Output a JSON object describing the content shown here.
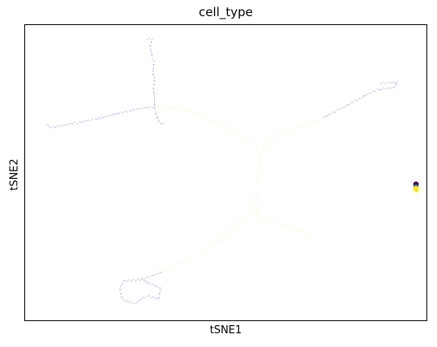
{
  "chart_data": {
    "type": "scatter",
    "title": "cell_type",
    "xlabel": "tSNE1",
    "ylabel": "tSNE2",
    "xlim": [
      0,
      100
    ],
    "ylim": [
      0,
      100
    ],
    "grid": false,
    "legend": "none",
    "ticks": "hidden",
    "point_colors": {
      "branch_faint": "#8f9bd6",
      "trunk_faint": "#f3f5b8",
      "cluster_purple": "#440154",
      "cluster_blue": "#31688e",
      "cluster_yellow": "#fde725"
    },
    "paths": [
      {
        "tone": "branch",
        "points": [
          [
            30.5,
            95.2
          ],
          [
            31.6,
            94.8
          ],
          [
            31.0,
            92.5
          ],
          [
            32.0,
            88.0
          ],
          [
            32.2,
            82.0
          ],
          [
            32.3,
            76.0
          ],
          [
            32.6,
            70.0
          ],
          [
            33.7,
            67.2
          ],
          [
            35.0,
            65.8
          ]
        ]
      },
      {
        "tone": "branch",
        "points": [
          [
            5.5,
            66.5
          ],
          [
            6.2,
            65.2
          ],
          [
            9.0,
            65.8
          ],
          [
            13.0,
            66.8
          ],
          [
            17.5,
            68.0
          ],
          [
            22.0,
            69.5
          ],
          [
            26.5,
            71.0
          ],
          [
            30.5,
            72.0
          ],
          [
            33.0,
            72.3
          ]
        ]
      },
      {
        "tone": "branch",
        "points": [
          [
            88.5,
            80.2
          ],
          [
            92.5,
            80.5
          ],
          [
            91.5,
            78.6
          ],
          [
            88.0,
            78.2
          ],
          [
            84.0,
            75.5
          ],
          [
            80.0,
            72.5
          ],
          [
            77.0,
            70.5
          ],
          [
            74.0,
            68.3
          ]
        ]
      },
      {
        "tone": "trunk",
        "points": [
          [
            33.0,
            72.3
          ],
          [
            38.0,
            71.8
          ],
          [
            43.0,
            69.8
          ],
          [
            49.0,
            66.0
          ],
          [
            54.0,
            62.5
          ],
          [
            57.5,
            59.0
          ],
          [
            58.8,
            55.0
          ]
        ]
      },
      {
        "tone": "trunk",
        "points": [
          [
            74.0,
            68.3
          ],
          [
            69.0,
            65.5
          ],
          [
            64.0,
            63.2
          ],
          [
            60.5,
            60.8
          ],
          [
            58.8,
            57.0
          ]
        ]
      },
      {
        "tone": "trunk",
        "points": [
          [
            58.8,
            55.0
          ],
          [
            58.0,
            50.0
          ],
          [
            57.4,
            44.0
          ],
          [
            57.4,
            38.5
          ],
          [
            58.0,
            35.5
          ]
        ]
      },
      {
        "tone": "trunk",
        "points": [
          [
            58.0,
            35.5
          ],
          [
            62.5,
            33.0
          ],
          [
            67.5,
            30.5
          ],
          [
            71.0,
            29.0
          ]
        ]
      },
      {
        "tone": "trunk",
        "points": [
          [
            57.0,
            37.0
          ],
          [
            53.0,
            33.0
          ],
          [
            49.0,
            28.0
          ],
          [
            44.0,
            23.0
          ],
          [
            39.0,
            19.5
          ],
          [
            34.0,
            16.5
          ]
        ]
      },
      {
        "tone": "branch",
        "points": [
          [
            34.0,
            16.5
          ],
          [
            29.0,
            14.0
          ],
          [
            24.5,
            13.5
          ],
          [
            23.5,
            11.0
          ],
          [
            24.5,
            7.0
          ],
          [
            27.5,
            6.0
          ],
          [
            30.5,
            8.5
          ],
          [
            33.5,
            7.5
          ],
          [
            34.0,
            11.0
          ],
          [
            31.5,
            12.5
          ],
          [
            29.0,
            14.0
          ]
        ]
      }
    ],
    "cluster": {
      "x": 97.2,
      "y": 45.3,
      "colors": [
        "cluster_purple",
        "cluster_blue",
        "cluster_yellow"
      ]
    }
  }
}
